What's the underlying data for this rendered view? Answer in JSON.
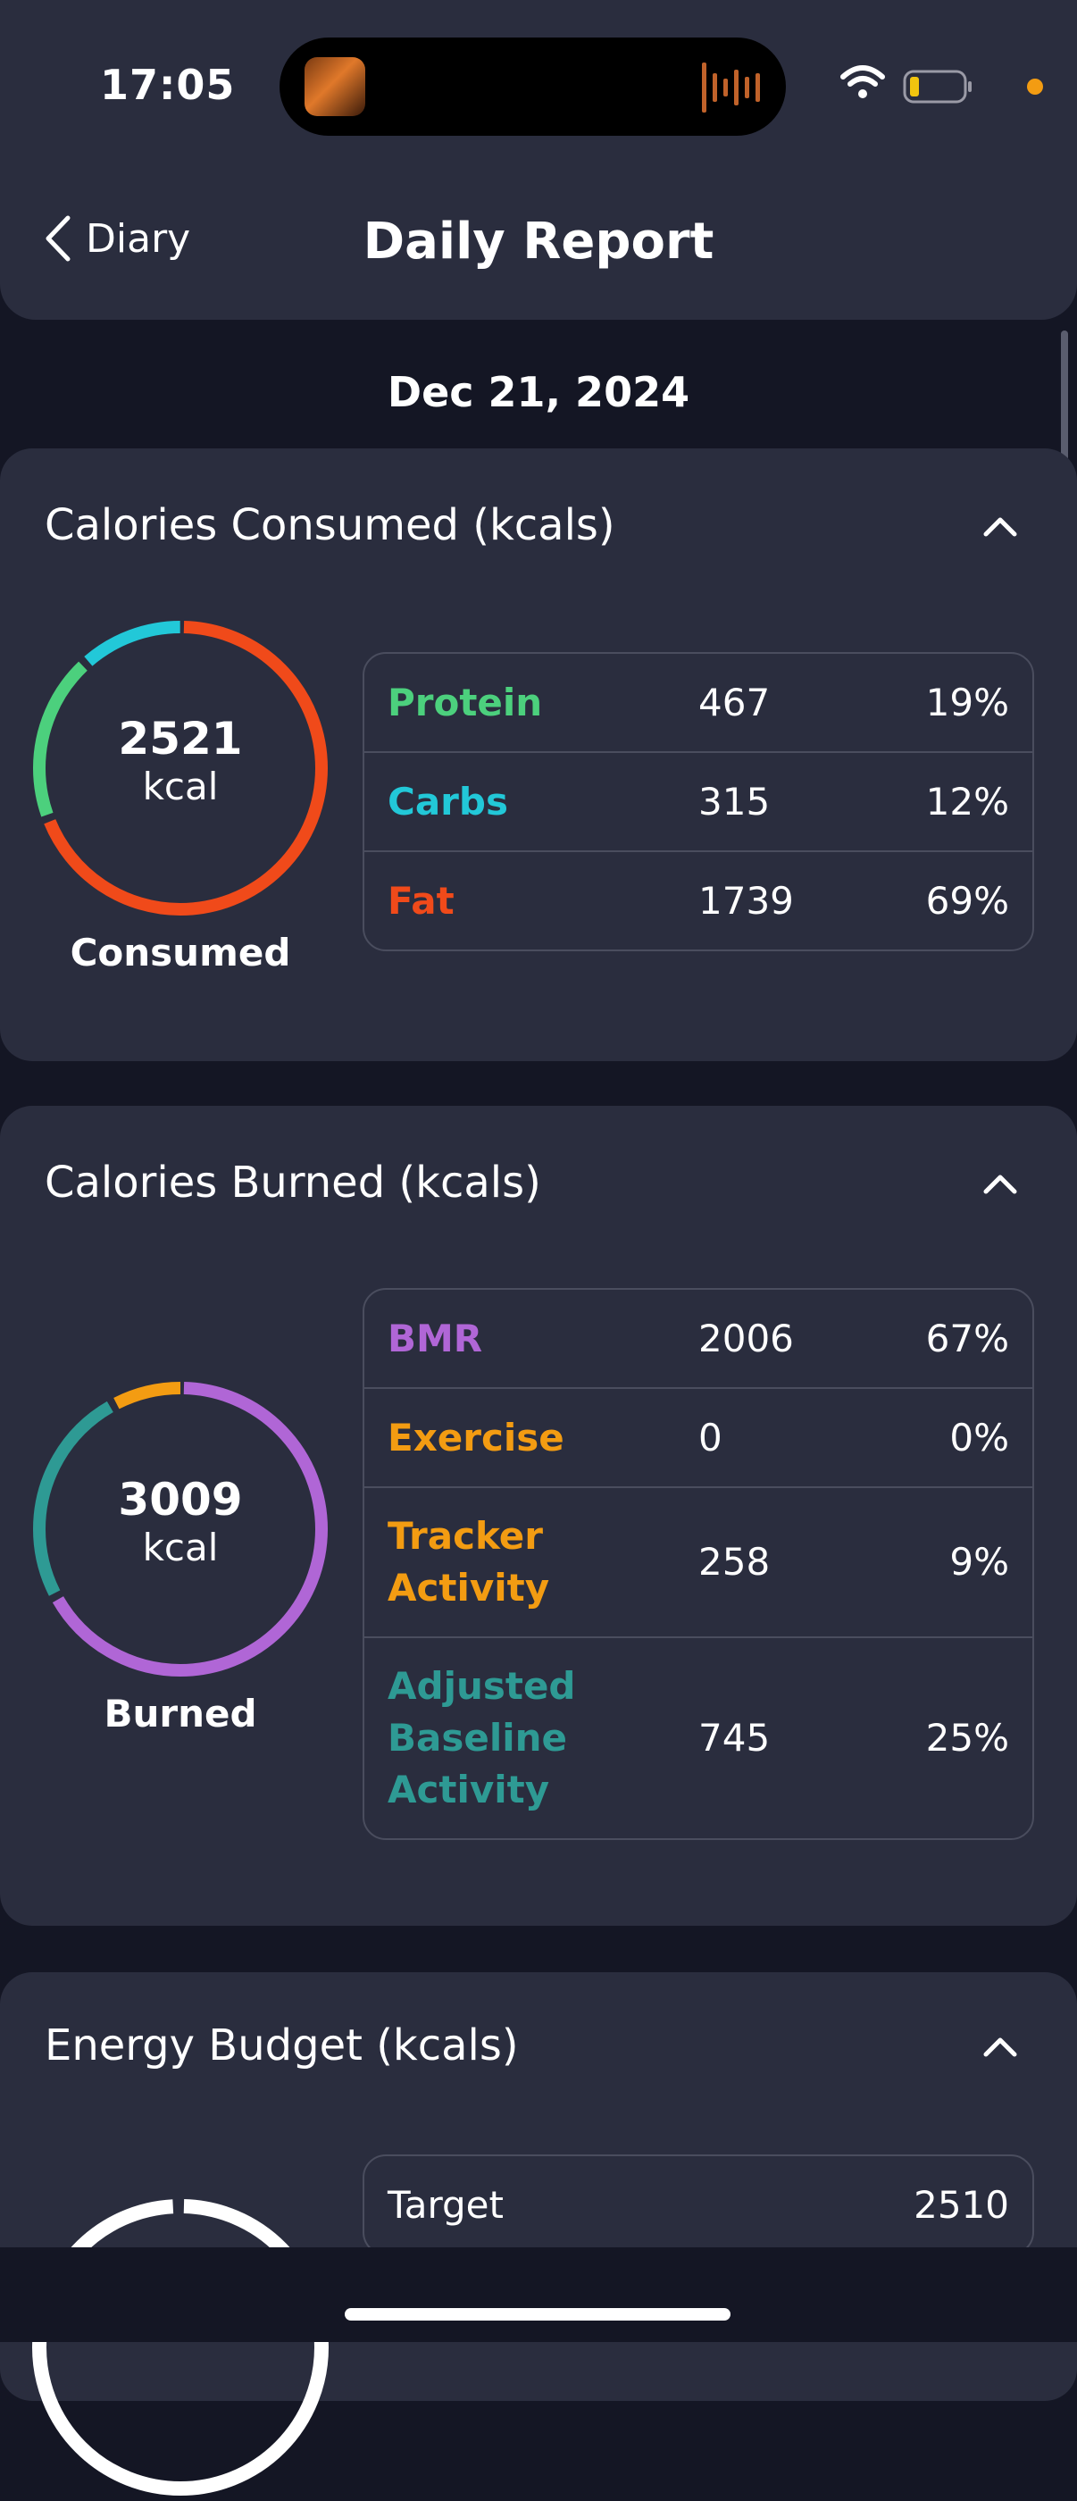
{
  "status": {
    "time": "17:05"
  },
  "nav": {
    "back_label": "Diary",
    "title": "Daily Report"
  },
  "date": "Dec 21, 2024",
  "consumed": {
    "title": "Calories Consumed (kcals)",
    "total": "2521",
    "unit": "kcal",
    "label": "Consumed",
    "rows": [
      {
        "name": "Protein",
        "value": "467",
        "pct": "19%",
        "color": "#4cd07d"
      },
      {
        "name": "Carbs",
        "value": "315",
        "pct": "12%",
        "color": "#22c8d8"
      },
      {
        "name": "Fat",
        "value": "1739",
        "pct": "69%",
        "color": "#f04a1a"
      }
    ]
  },
  "burned": {
    "title": "Calories Burned (kcals)",
    "total": "3009",
    "unit": "kcal",
    "label": "Burned",
    "rows": [
      {
        "name": "BMR",
        "value": "2006",
        "pct": "67%",
        "color": "#b066d6"
      },
      {
        "name": "Exercise",
        "value": "0",
        "pct": "0%",
        "color": "#f39c12"
      },
      {
        "name": "Tracker Activity",
        "value": "258",
        "pct": "9%",
        "color": "#f39c12"
      },
      {
        "name": "Adjusted Baseline Activity",
        "value": "745",
        "pct": "25%",
        "color": "#2e9a94"
      }
    ]
  },
  "budget": {
    "title": "Energy Budget (kcals)",
    "rows": [
      {
        "name": "Target",
        "value": "2510"
      }
    ]
  },
  "colors": {
    "background": "#141624",
    "card": "#2a2d3e",
    "border": "#4a4d5e",
    "accent": "#f39c12"
  },
  "icons": [
    "chevron-left-icon",
    "chevron-up-icon",
    "wifi-icon",
    "battery-icon",
    "audio-wave-icon"
  ]
}
